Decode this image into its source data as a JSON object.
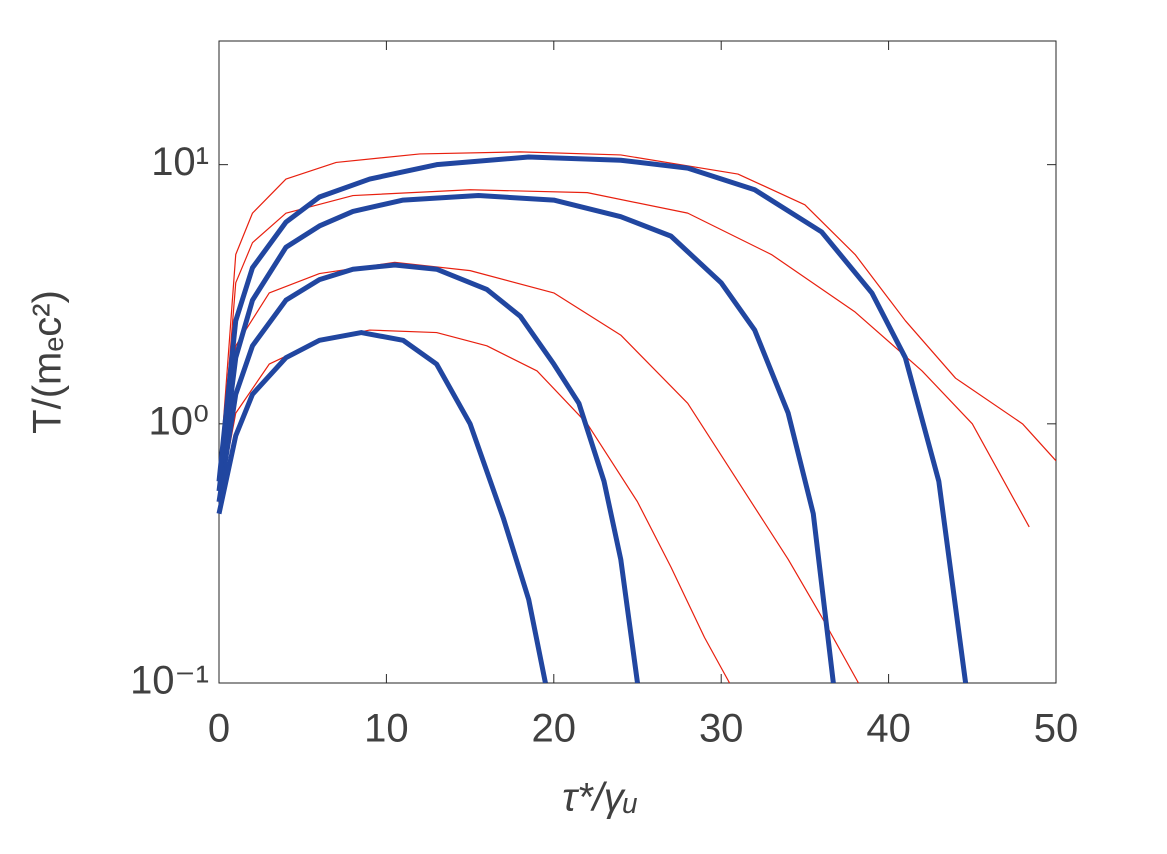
{
  "chart_data": {
    "type": "line",
    "xlabel": "τ*/γᵤ",
    "ylabel": "T/(mₑc²)",
    "xlim": [
      0,
      50
    ],
    "xticks": [
      0,
      10,
      20,
      30,
      40,
      50
    ],
    "ylim": [
      0.1,
      30
    ],
    "log_y": true,
    "yticks": [
      {
        "value": 0.1,
        "label": "10⁻¹"
      },
      {
        "value": 1,
        "label": "10⁰"
      },
      {
        "value": 10,
        "label": "10¹"
      }
    ],
    "series": [
      {
        "color": "#e8200f",
        "linewidth": 1.2,
        "x": [
          0,
          1,
          3,
          6,
          9,
          13,
          16,
          19,
          22,
          25,
          27,
          29,
          30.5
        ],
        "values": [
          0.5,
          1.1,
          1.7,
          2.1,
          2.3,
          2.25,
          2.0,
          1.6,
          1.0,
          0.5,
          0.28,
          0.15,
          0.1
        ]
      },
      {
        "color": "#e8200f",
        "linewidth": 1.2,
        "x": [
          0,
          1,
          3,
          6,
          10.5,
          15,
          20,
          24,
          28,
          31,
          34,
          36,
          38.2
        ],
        "values": [
          0.5,
          2,
          3.2,
          3.8,
          4.2,
          3.9,
          3.2,
          2.2,
          1.2,
          0.6,
          0.3,
          0.18,
          0.1
        ]
      },
      {
        "color": "#e8200f",
        "linewidth": 1.2,
        "x": [
          0,
          1,
          2,
          4,
          8,
          15,
          22,
          28,
          33,
          38,
          42,
          45,
          48.4
        ],
        "values": [
          0.55,
          3.5,
          5,
          6.5,
          7.6,
          8,
          7.8,
          6.5,
          4.5,
          2.7,
          1.6,
          1.0,
          0.4
        ]
      },
      {
        "color": "#e8200f",
        "linewidth": 1.2,
        "x": [
          0,
          1,
          2,
          4,
          7,
          12,
          18,
          24,
          31,
          35,
          38,
          41,
          44,
          48,
          50
        ],
        "values": [
          0.6,
          4.5,
          6.5,
          8.8,
          10.2,
          11,
          11.2,
          10.9,
          9.2,
          7,
          4.5,
          2.5,
          1.5,
          1.0,
          0.72
        ]
      },
      {
        "color": "#2146a0",
        "linewidth": 5,
        "x": [
          0,
          1,
          2,
          4,
          6,
          8.5,
          11,
          13,
          15,
          17,
          18.5,
          19.5
        ],
        "values": [
          0.45,
          0.9,
          1.3,
          1.8,
          2.1,
          2.25,
          2.1,
          1.7,
          1.0,
          0.43,
          0.21,
          0.1
        ]
      },
      {
        "color": "#2146a0",
        "linewidth": 5,
        "x": [
          0,
          1,
          2,
          4,
          6,
          8,
          10.5,
          13,
          16,
          18,
          20,
          21.5,
          23,
          24,
          25
        ],
        "values": [
          0.5,
          1.3,
          2,
          3,
          3.6,
          3.95,
          4.1,
          3.95,
          3.3,
          2.6,
          1.7,
          1.2,
          0.6,
          0.3,
          0.1
        ]
      },
      {
        "color": "#2146a0",
        "linewidth": 5,
        "x": [
          0,
          1,
          2,
          4,
          6,
          8,
          11,
          15.5,
          20,
          24,
          27,
          30,
          32,
          34,
          35.5,
          36.7
        ],
        "values": [
          0.55,
          1.8,
          3,
          4.8,
          5.8,
          6.6,
          7.3,
          7.6,
          7.3,
          6.3,
          5.3,
          3.5,
          2.3,
          1.1,
          0.45,
          0.1
        ]
      },
      {
        "color": "#2146a0",
        "linewidth": 5,
        "x": [
          0,
          1,
          2,
          4,
          6,
          9,
          13,
          18.5,
          24,
          28,
          32,
          36,
          39,
          41,
          43,
          44.6
        ],
        "values": [
          0.6,
          2.5,
          4,
          6,
          7.5,
          8.8,
          10,
          10.7,
          10.4,
          9.7,
          8,
          5.5,
          3.2,
          1.8,
          0.6,
          0.1
        ]
      }
    ]
  }
}
